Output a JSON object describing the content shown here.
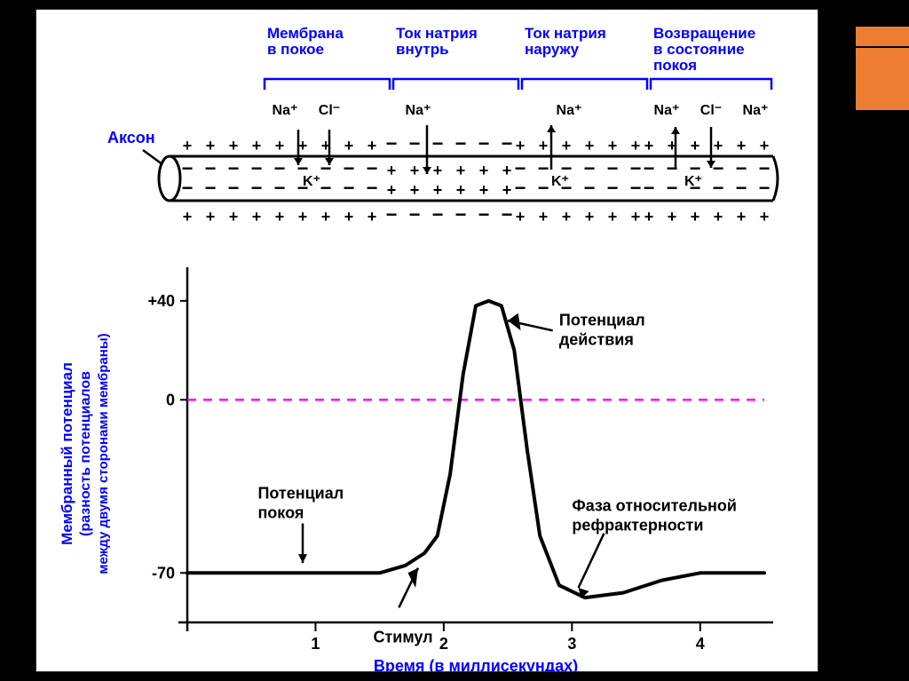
{
  "decor": {
    "orange1_color": "#ed7d31",
    "orange2_color": "#ed7d31",
    "bg": "#000000",
    "panel_bg": "#ffffff"
  },
  "top_diagram": {
    "phases": [
      {
        "label1": "Мембрана",
        "label2": "в покое"
      },
      {
        "label1": "Ток натрия",
        "label2": "внутрь"
      },
      {
        "label1": "Ток натрия",
        "label2": "наружу"
      },
      {
        "label1": "Возвращение",
        "label2": "в состояние",
        "label3": "покоя"
      }
    ],
    "axon_label": "Аксон",
    "ions": {
      "na": "Na⁺",
      "cl": "Cl⁻",
      "k": "K⁺"
    },
    "label_color": "#0000ff",
    "ion_label_color": "#000000",
    "axon_fill": "#ffffff",
    "axon_stroke": "#000000",
    "bracket_color": "#0000ff"
  },
  "chart": {
    "type": "line",
    "y_label_main": "Мембранный потенциал",
    "y_label_sub1": "(разность потенциалов",
    "y_label_sub2": "между двумя сторонами мембраны)",
    "x_label": "Время (в миллисекундах)",
    "y_ticks": [
      {
        "value": 40,
        "label": "+40"
      },
      {
        "value": 0,
        "label": "0"
      },
      {
        "value": -70,
        "label": "-70"
      }
    ],
    "x_ticks": [
      {
        "value": 1,
        "label": "1"
      },
      {
        "value": 2,
        "label": "2"
      },
      {
        "value": 3,
        "label": "3"
      },
      {
        "value": 4,
        "label": "4"
      }
    ],
    "zero_line_color": "#ff00ff",
    "axis_color": "#000000",
    "axis_label_color": "#0000ff",
    "tick_label_color": "#000000",
    "curve_color": "#000000",
    "curve_width": 4,
    "xlim": [
      0,
      4.5
    ],
    "ylim": [
      -90,
      50
    ],
    "curve_points": [
      {
        "x": 0.0,
        "y": -70
      },
      {
        "x": 1.5,
        "y": -70
      },
      {
        "x": 1.7,
        "y": -67
      },
      {
        "x": 1.85,
        "y": -62
      },
      {
        "x": 1.95,
        "y": -55
      },
      {
        "x": 2.05,
        "y": -30
      },
      {
        "x": 2.15,
        "y": 10
      },
      {
        "x": 2.25,
        "y": 38
      },
      {
        "x": 2.35,
        "y": 40
      },
      {
        "x": 2.45,
        "y": 38
      },
      {
        "x": 2.55,
        "y": 20
      },
      {
        "x": 2.65,
        "y": -20
      },
      {
        "x": 2.75,
        "y": -55
      },
      {
        "x": 2.9,
        "y": -75
      },
      {
        "x": 3.1,
        "y": -80
      },
      {
        "x": 3.4,
        "y": -78
      },
      {
        "x": 3.7,
        "y": -73
      },
      {
        "x": 4.0,
        "y": -70
      },
      {
        "x": 4.5,
        "y": -70
      }
    ],
    "annotations": {
      "action_potential": {
        "label1": "Потенциал",
        "label2": "действия"
      },
      "resting_potential": {
        "label1": "Потенциал",
        "label2": "покоя"
      },
      "stimulus": {
        "label": "Стимул"
      },
      "refractory": {
        "label1": "Фаза относительной",
        "label2": "рефрактерности"
      }
    },
    "annotation_color": "#000000"
  }
}
